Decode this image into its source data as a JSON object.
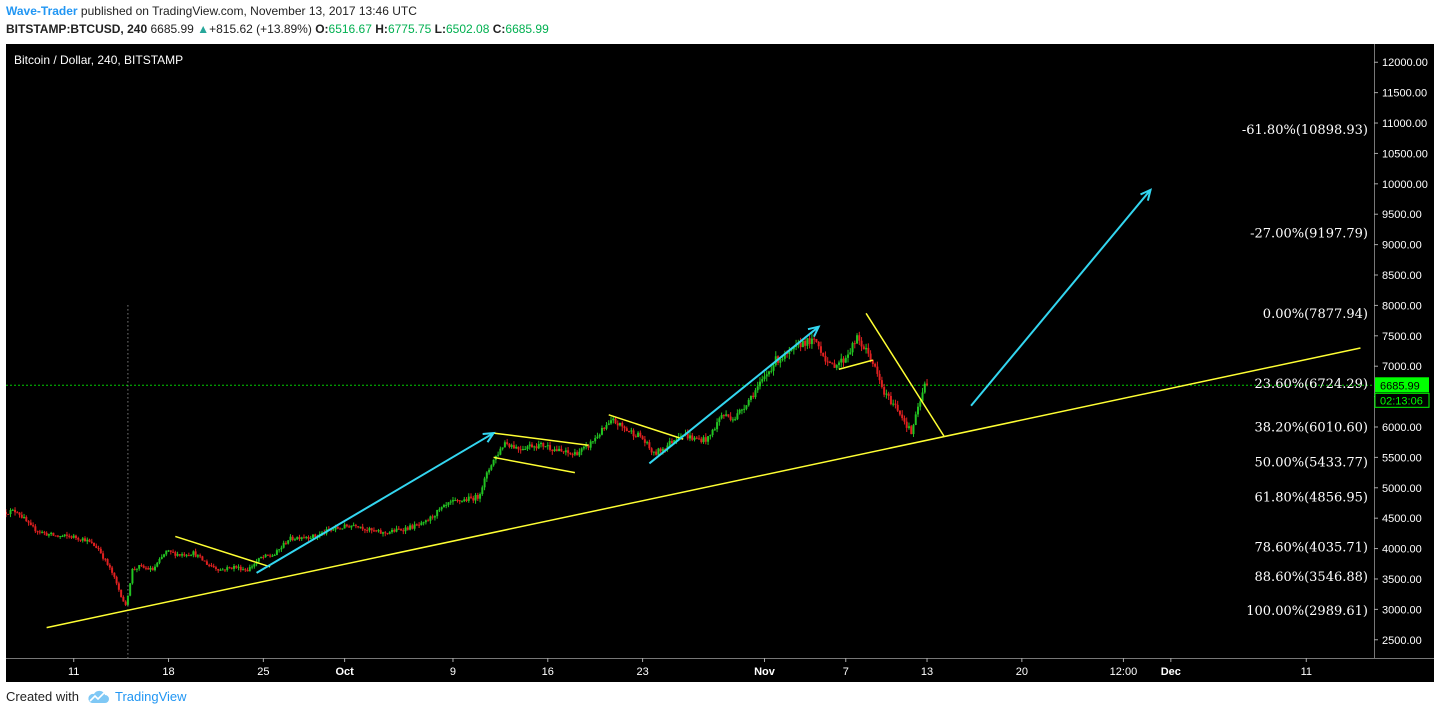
{
  "header": {
    "author": "Wave-Trader",
    "published": " published on TradingView.com, November 13, 2017 13:46 UTC",
    "symbol": "BITSTAMP:BTCUSD, 240",
    "last": "6685.99",
    "change": "+815.62 (+13.89%)",
    "o_label": "O:",
    "o": "6516.67",
    "h_label": "H:",
    "h": "6775.75",
    "l_label": "L:",
    "l": "6502.08",
    "c_label": "C:",
    "c": "6685.99"
  },
  "footer": {
    "created_with": "Created with",
    "brand": "TradingView"
  },
  "colors": {
    "background": "#000000",
    "up": "#22c322",
    "down": "#e02020",
    "trend": "#ffff33",
    "arrow": "#33d6f0",
    "price_label": "#00ff00",
    "axis_text": "#ffffff",
    "fib_text": "#ffffff"
  },
  "chart_data": {
    "type": "candlestick",
    "title": "Bitcoin / Dollar, 240, BITSTAMP",
    "ylim": [
      2200,
      12300
    ],
    "yticks": [
      "2500.00",
      "3000.00",
      "3500.00",
      "4000.00",
      "4500.00",
      "5000.00",
      "5500.00",
      "6000.00",
      "6500.00",
      "7000.00",
      "7500.00",
      "8000.00",
      "8500.00",
      "9000.00",
      "9500.00",
      "10000.00",
      "10500.00",
      "11000.00",
      "11500.00",
      "12000.00"
    ],
    "x_domain": [
      "2017-09-06",
      "2017-12-16"
    ],
    "xticks": [
      {
        "date": "2017-09-11",
        "label": "11"
      },
      {
        "date": "2017-09-18",
        "label": "18"
      },
      {
        "date": "2017-09-25",
        "label": "25"
      },
      {
        "date": "2017-10-01",
        "label": "Oct"
      },
      {
        "date": "2017-10-09",
        "label": "9"
      },
      {
        "date": "2017-10-16",
        "label": "16"
      },
      {
        "date": "2017-10-23",
        "label": "23"
      },
      {
        "date": "2017-11-01",
        "label": "Nov"
      },
      {
        "date": "2017-11-07",
        "label": "7"
      },
      {
        "date": "2017-11-13",
        "label": "13"
      },
      {
        "date": "2017-11-20",
        "label": "20"
      },
      {
        "date": "2017-11-27T12:00",
        "label": "12:00"
      },
      {
        "date": "2017-12-01",
        "label": "Dec"
      },
      {
        "date": "2017-12-11",
        "label": "11"
      }
    ],
    "price_path": [
      [
        "2017-09-06",
        4600
      ],
      [
        "2017-09-07",
        4620
      ],
      [
        "2017-09-08",
        4350
      ],
      [
        "2017-09-09",
        4250
      ],
      [
        "2017-09-10",
        4200
      ],
      [
        "2017-09-11",
        4200
      ],
      [
        "2017-09-12",
        4150
      ],
      [
        "2017-09-13",
        4000
      ],
      [
        "2017-09-14",
        3600
      ],
      [
        "2017-09-15",
        3050
      ],
      [
        "2017-09-15T12:00",
        3650
      ],
      [
        "2017-09-16",
        3700
      ],
      [
        "2017-09-17",
        3650
      ],
      [
        "2017-09-18",
        3950
      ],
      [
        "2017-09-19",
        3900
      ],
      [
        "2017-09-20",
        3930
      ],
      [
        "2017-09-21",
        3750
      ],
      [
        "2017-09-22",
        3650
      ],
      [
        "2017-09-23",
        3700
      ],
      [
        "2017-09-24",
        3650
      ],
      [
        "2017-09-25",
        3850
      ],
      [
        "2017-09-26",
        3900
      ],
      [
        "2017-09-27",
        4150
      ],
      [
        "2017-09-28",
        4200
      ],
      [
        "2017-09-29",
        4200
      ],
      [
        "2017-09-30",
        4300
      ],
      [
        "2017-10-01",
        4350
      ],
      [
        "2017-10-02",
        4400
      ],
      [
        "2017-10-03",
        4300
      ],
      [
        "2017-10-04",
        4250
      ],
      [
        "2017-10-05",
        4300
      ],
      [
        "2017-10-06",
        4350
      ],
      [
        "2017-10-07",
        4400
      ],
      [
        "2017-10-08",
        4600
      ],
      [
        "2017-10-09",
        4750
      ],
      [
        "2017-10-10",
        4800
      ],
      [
        "2017-10-11",
        4850
      ],
      [
        "2017-10-12",
        5400
      ],
      [
        "2017-10-13",
        5750
      ],
      [
        "2017-10-14",
        5650
      ],
      [
        "2017-10-15",
        5700
      ],
      [
        "2017-10-16",
        5700
      ],
      [
        "2017-10-17",
        5600
      ],
      [
        "2017-10-18",
        5550
      ],
      [
        "2017-10-19",
        5650
      ],
      [
        "2017-10-20",
        5900
      ],
      [
        "2017-10-21",
        6100
      ],
      [
        "2017-10-22",
        5950
      ],
      [
        "2017-10-23",
        5850
      ],
      [
        "2017-10-24",
        5550
      ],
      [
        "2017-10-25",
        5700
      ],
      [
        "2017-10-26",
        5900
      ],
      [
        "2017-10-27",
        5800
      ],
      [
        "2017-10-28",
        5800
      ],
      [
        "2017-10-29",
        6200
      ],
      [
        "2017-10-30",
        6150
      ],
      [
        "2017-10-31",
        6450
      ],
      [
        "2017-11-01",
        6750
      ],
      [
        "2017-11-02",
        7100
      ],
      [
        "2017-11-03",
        7200
      ],
      [
        "2017-11-04",
        7400
      ],
      [
        "2017-11-05",
        7400
      ],
      [
        "2017-11-06",
        7000
      ],
      [
        "2017-11-07",
        7100
      ],
      [
        "2017-11-08",
        7450
      ],
      [
        "2017-11-09",
        7150
      ],
      [
        "2017-11-10",
        6550
      ],
      [
        "2017-11-11",
        6300
      ],
      [
        "2017-11-12",
        5900
      ],
      [
        "2017-11-13",
        6686
      ]
    ],
    "annotations": {
      "crosshair_date": "2017-09-15",
      "current_price": "6685.99",
      "countdown": "02:13:06",
      "fib_levels": [
        {
          "label": "-61.80%(10898.93)",
          "value": 10898.93
        },
        {
          "label": "-27.00%(9197.79)",
          "value": 9197.79
        },
        {
          "label": "0.00%(7877.94)",
          "value": 7877.94
        },
        {
          "label": "23.60%(6724.29)",
          "value": 6724.29
        },
        {
          "label": "38.20%(6010.60)",
          "value": 6010.6
        },
        {
          "label": "50.00%(5433.77)",
          "value": 5433.77
        },
        {
          "label": "61.80%(4856.95)",
          "value": 4856.95
        },
        {
          "label": "78.60%(4035.71)",
          "value": 4035.71
        },
        {
          "label": "88.60%(3546.88)",
          "value": 3546.88
        },
        {
          "label": "100.00%(2989.61)",
          "value": 2989.61
        }
      ],
      "trend_lines": [
        [
          [
            "2017-09-09",
            2700
          ],
          [
            "2017-12-15",
            7300
          ]
        ],
        [
          [
            "2017-09-18T12:00",
            4200
          ],
          [
            "2017-09-25T12:00",
            3700
          ]
        ],
        [
          [
            "2017-10-12",
            5900
          ],
          [
            "2017-10-19",
            5700
          ]
        ],
        [
          [
            "2017-10-12",
            5500
          ],
          [
            "2017-10-18",
            5250
          ]
        ],
        [
          [
            "2017-10-20T12:00",
            6200
          ],
          [
            "2017-10-26",
            5800
          ]
        ],
        [
          [
            "2017-11-06T12:00",
            6950
          ],
          [
            "2017-11-09",
            7100
          ]
        ],
        [
          [
            "2017-11-08T12:00",
            7870
          ],
          [
            "2017-11-14T06:00",
            5850
          ]
        ]
      ],
      "arrows": [
        [
          [
            "2017-09-24T12:00",
            3600
          ],
          [
            "2017-10-12",
            5900
          ]
        ],
        [
          [
            "2017-10-23T12:00",
            5400
          ],
          [
            "2017-11-05",
            7650
          ]
        ],
        [
          [
            "2017-11-16T06:00",
            6350
          ],
          [
            "2017-11-29T12:00",
            9900
          ]
        ]
      ]
    }
  }
}
